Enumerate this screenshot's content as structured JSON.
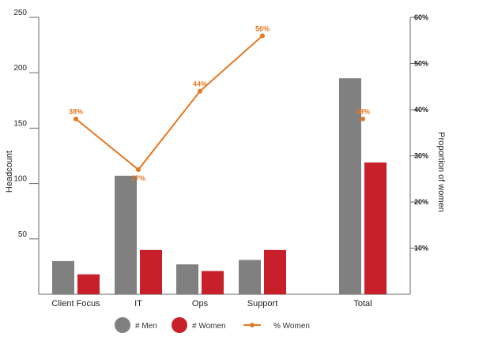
{
  "chart_data": {
    "type": "bar",
    "categories": [
      "Client Focus",
      "IT",
      "Ops",
      "Support",
      "Total"
    ],
    "series": [
      {
        "name": "# Men",
        "type": "bar",
        "axis": "left",
        "color": "#808080",
        "values": [
          30,
          107,
          27,
          31,
          195
        ]
      },
      {
        "name": "# Women",
        "type": "bar",
        "axis": "left",
        "color": "#c8202a",
        "values": [
          18,
          40,
          21,
          40,
          119
        ]
      },
      {
        "name": "% Women",
        "type": "line",
        "axis": "right",
        "color": "#e87722",
        "values": [
          38,
          27,
          44,
          56,
          38
        ],
        "labels": [
          "38%",
          "27%",
          "44%",
          "56%",
          "38%"
        ],
        "connected": [
          true,
          true,
          true,
          true,
          false
        ]
      }
    ],
    "ylabel": "Headcount",
    "ylabel_right": "Proportion of women",
    "ylim": [
      0,
      250
    ],
    "ylim_right": [
      0,
      60
    ],
    "yticks": [
      "50",
      "100",
      "150",
      "200",
      "250"
    ],
    "yticks_right": [
      "10%",
      "20%",
      "30%",
      "40%",
      "50%",
      "60%"
    ],
    "grid": false,
    "legend_position": "bottom"
  }
}
